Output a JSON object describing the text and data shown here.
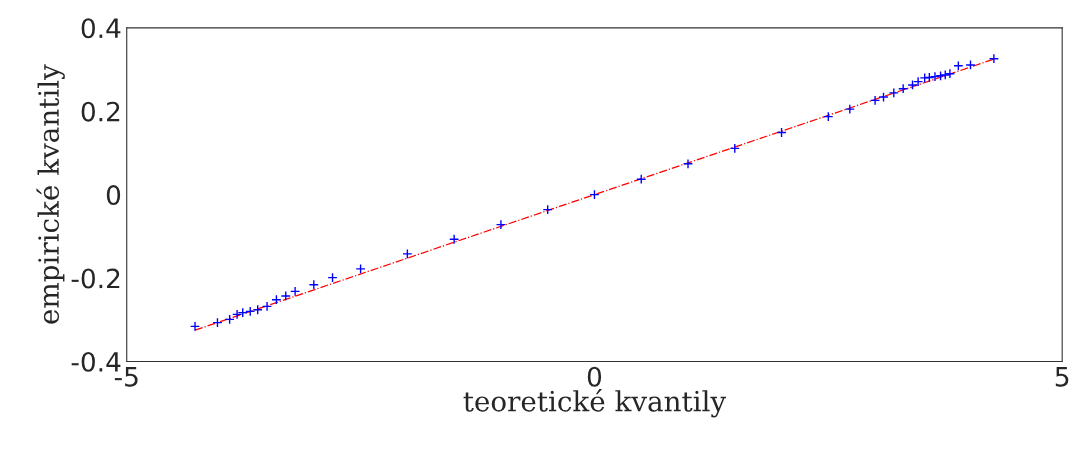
{
  "chart_data": {
    "type": "scatter",
    "xlabel": "teoretické kvantily",
    "ylabel": "empirické kvantily",
    "xlim": [
      -5,
      5
    ],
    "xticks": [
      -5,
      0,
      5
    ],
    "ylim": [
      -0.4,
      0.4
    ],
    "yticks": [
      -0.4,
      -0.2,
      0,
      0.2,
      0.4
    ],
    "grid": false,
    "legend": false,
    "series": [
      {
        "color": "#0000ff",
        "marker": "cross",
        "x": [
          -4.27,
          -4.03,
          -3.9,
          -3.82,
          -3.76,
          -3.68,
          -3.6,
          -3.5,
          -3.4,
          -3.3,
          -3.2,
          -3.0,
          -2.8,
          -2.5,
          -2.0,
          -1.5,
          -1.0,
          -0.5,
          0,
          0.5,
          1.0,
          1.5,
          2.0,
          2.5,
          2.73,
          3.0,
          3.09,
          3.2,
          3.3,
          3.4,
          3.46,
          3.53,
          3.58,
          3.64,
          3.7,
          3.75,
          3.8,
          3.89,
          4.02,
          4.27
        ],
        "values": [
          -0.316,
          -0.307,
          -0.299,
          -0.287,
          -0.283,
          -0.28,
          -0.276,
          -0.268,
          -0.252,
          -0.243,
          -0.232,
          -0.216,
          -0.199,
          -0.178,
          -0.142,
          -0.107,
          -0.072,
          -0.036,
          0,
          0.037,
          0.074,
          0.111,
          0.149,
          0.187,
          0.205,
          0.226,
          0.234,
          0.244,
          0.254,
          0.263,
          0.271,
          0.28,
          0.281,
          0.283,
          0.285,
          0.287,
          0.29,
          0.309,
          0.311,
          0.326
        ]
      },
      {
        "type": "line",
        "color": "#ff0000",
        "line_style": "dashed",
        "x": [
          -4.27,
          4.27
        ],
        "values": [
          -0.325,
          0.325
        ]
      }
    ]
  }
}
